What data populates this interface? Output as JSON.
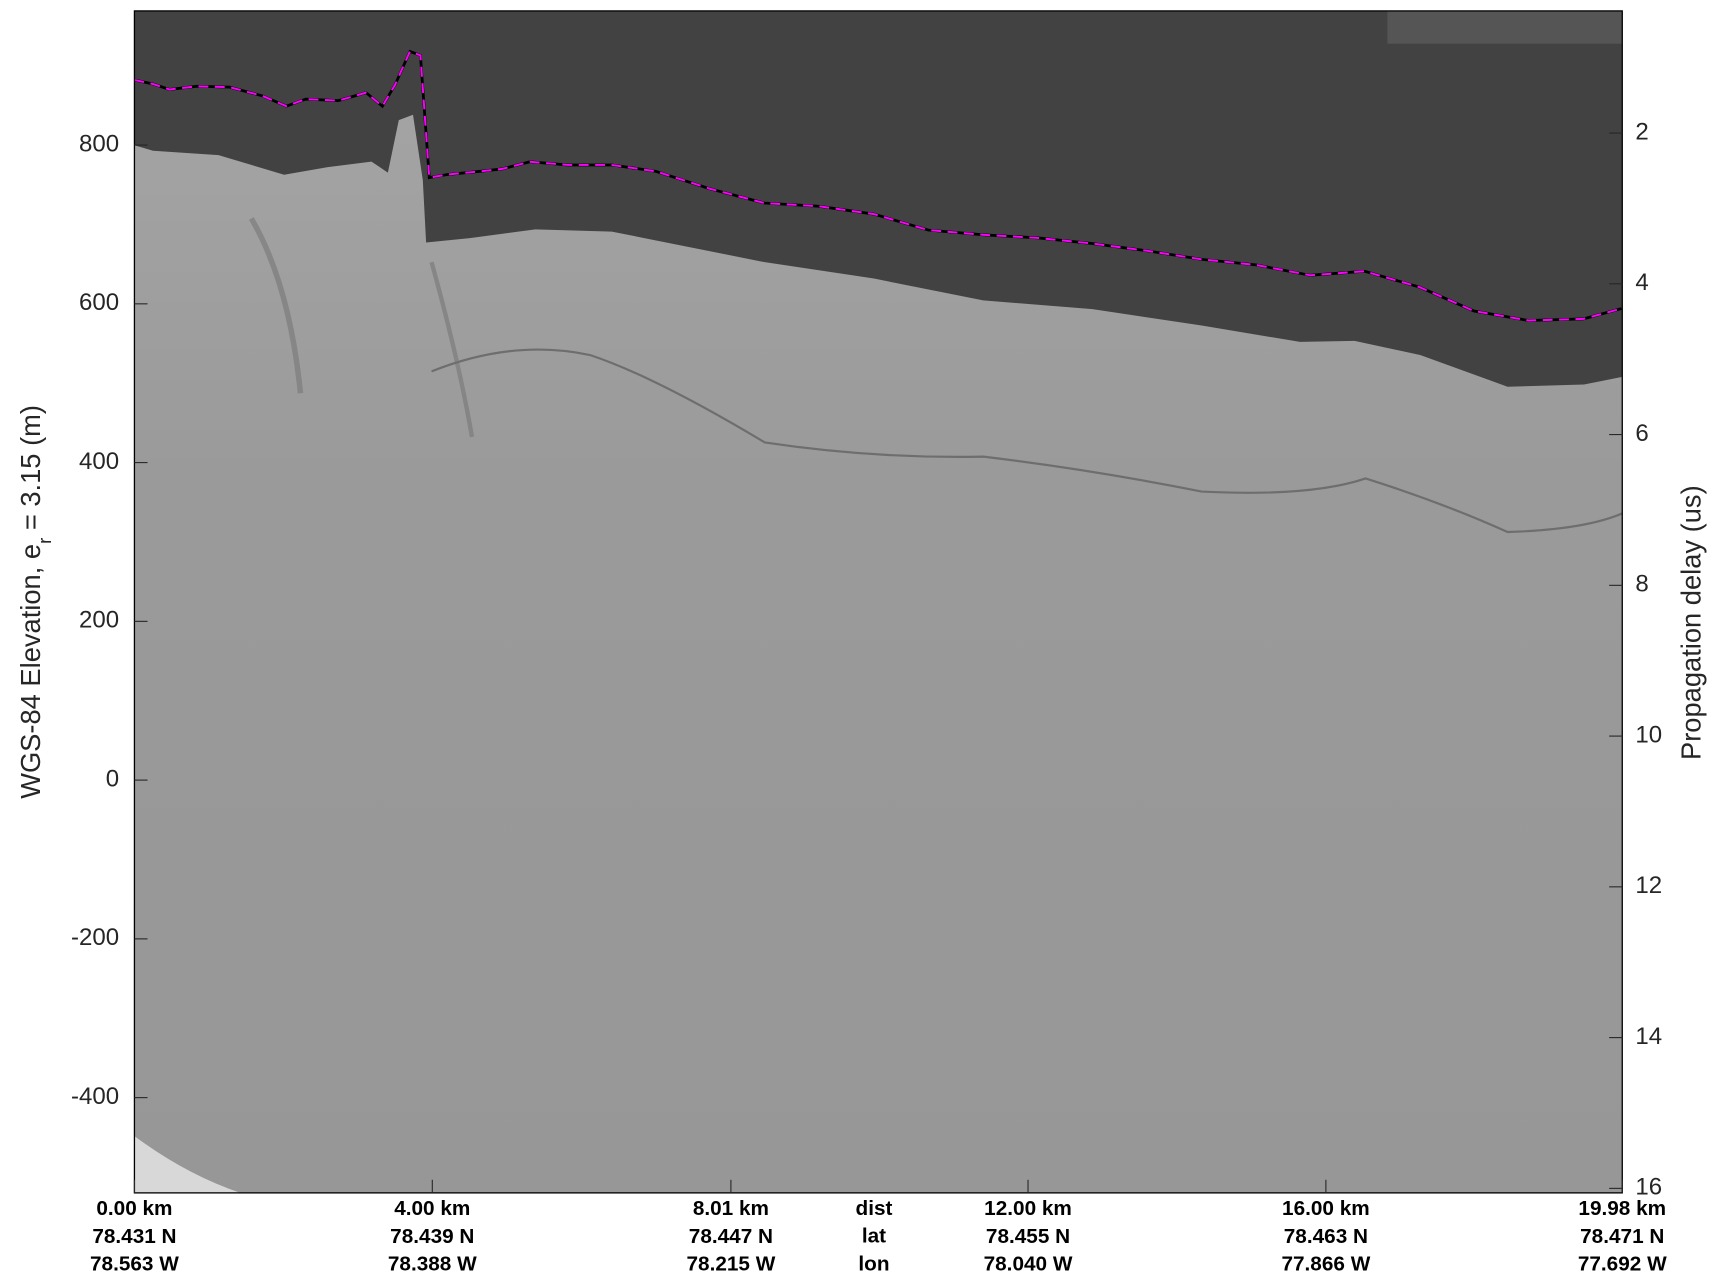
{
  "chart_data": {
    "type": "line",
    "ylabel": [
      "WGS-84 Elevation, e",
      "r",
      " = 3.15 (m)"
    ],
    "y2label": "Propagation delay (us)",
    "xlim": [
      0,
      19.98
    ],
    "ylim": [
      -520,
      969
    ],
    "y2lim": [
      16.06,
      0.38
    ],
    "yticks": [
      -400,
      -200,
      0,
      200,
      400,
      600,
      800
    ],
    "y2ticks": [
      2,
      4,
      6,
      8,
      10,
      12,
      14,
      16
    ],
    "xticks": [
      {
        "value": 0,
        "label": "0.00 km"
      },
      {
        "value": 4.0,
        "label": "4.00 km"
      },
      {
        "value": 8.01,
        "label": "8.01 km"
      },
      {
        "value": 12.0,
        "label": "12.00 km"
      },
      {
        "value": 16.0,
        "label": "16.00 km"
      },
      {
        "value": 19.98,
        "label": "19.98 km"
      }
    ],
    "x_lat_labels": [
      "78.431 N",
      "78.439 N",
      "78.447 N",
      "78.455 N",
      "78.463 N",
      "78.471 N"
    ],
    "x_lon_labels": [
      "78.563 W",
      "78.388 W",
      "78.215 W",
      "78.040 W",
      "77.866 W",
      "77.692 W"
    ],
    "row_labels": [
      "dist",
      "lat",
      "lon"
    ],
    "series": [
      {
        "color": "#ff00ff",
        "x": [
          0,
          0.25,
          0.47,
          0.84,
          1.28,
          1.72,
          2.04,
          2.3,
          2.74,
          3.11,
          3.33,
          3.5,
          3.7,
          3.84,
          3.96,
          4.21,
          4.65,
          4.94,
          5.31,
          5.82,
          6.41,
          7.0,
          7.73,
          8.46,
          9.19,
          9.93,
          10.66,
          11.39,
          12.13,
          12.86,
          13.59,
          14.33,
          15.06,
          15.79,
          16.52,
          17.26,
          17.99,
          18.72,
          19.46,
          19.97
        ],
        "values": [
          882,
          877,
          870,
          874,
          873,
          862,
          849,
          858,
          856,
          866,
          849,
          876,
          918,
          913,
          759,
          763,
          767,
          770,
          779,
          775,
          775,
          767,
          745,
          727,
          723,
          713,
          693,
          687,
          683,
          676,
          667,
          656,
          649,
          636,
          641,
          621,
          591,
          579,
          581,
          594
        ]
      }
    ]
  }
}
